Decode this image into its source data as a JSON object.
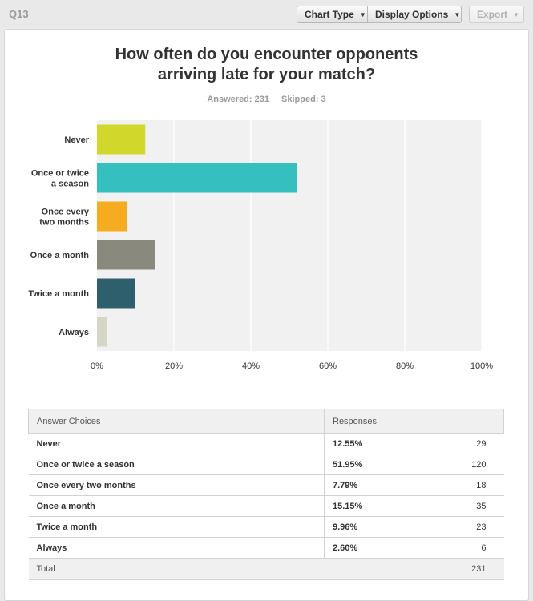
{
  "toolbar": {
    "question_number": "Q13",
    "chart_type_label": "Chart Type",
    "display_options_label": "Display Options",
    "export_label": "Export"
  },
  "question": {
    "title_line1": "How often do you encounter opponents",
    "title_line2": "arriving late for your match?",
    "answered": "Answered: 231",
    "skipped": "Skipped: 3"
  },
  "chart_data": {
    "type": "bar",
    "orientation": "horizontal",
    "categories": [
      [
        "Never"
      ],
      [
        "Once or twice",
        "a season"
      ],
      [
        "Once every",
        "two months"
      ],
      [
        "Once a month"
      ],
      [
        "Twice a month"
      ],
      [
        "Always"
      ]
    ],
    "values": [
      12.55,
      51.95,
      7.79,
      15.15,
      9.96,
      2.6
    ],
    "colors": [
      "#d1d82b",
      "#35bfbf",
      "#f5ac20",
      "#898a7d",
      "#2d5f6c",
      "#d6d6c6"
    ],
    "xlim": [
      0,
      100
    ],
    "ticks": [
      "0%",
      "20%",
      "40%",
      "60%",
      "80%",
      "100%"
    ],
    "grid": true
  },
  "table": {
    "headers": [
      "Answer Choices",
      "Responses"
    ],
    "rows": [
      {
        "choice": "Never",
        "percent": "12.55%",
        "count": "29"
      },
      {
        "choice": "Once or twice a season",
        "percent": "51.95%",
        "count": "120"
      },
      {
        "choice": "Once every two months",
        "percent": "7.79%",
        "count": "18"
      },
      {
        "choice": "Once a month",
        "percent": "15.15%",
        "count": "35"
      },
      {
        "choice": "Twice a month",
        "percent": "9.96%",
        "count": "23"
      },
      {
        "choice": "Always",
        "percent": "2.60%",
        "count": "6"
      }
    ],
    "total_label": "Total",
    "total_count": "231"
  }
}
